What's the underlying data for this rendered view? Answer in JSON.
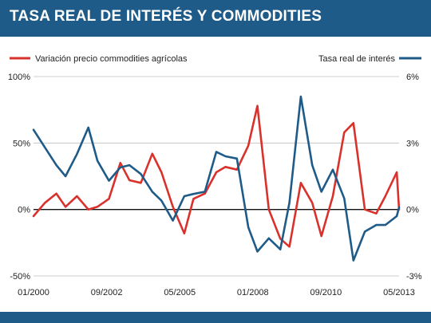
{
  "title": "TASA REAL DE INTERÉS Y COMMODITIES",
  "chart_data": {
    "type": "line",
    "title": "TASA REAL DE INTERÉS Y COMMODITIES",
    "x_tick_labels": [
      "01/2000",
      "09/2002",
      "05/2005",
      "01/2008",
      "09/2010",
      "05/2013"
    ],
    "x_range": [
      "01/2000",
      "05/2013"
    ],
    "left_axis": {
      "ticks": [
        "100%",
        "50%",
        "0%",
        "-50%"
      ],
      "ylim": [
        -50,
        100
      ],
      "unit": "%"
    },
    "right_axis": {
      "ticks": [
        "6%",
        "3%",
        "0%",
        "-3%"
      ],
      "ylim": [
        -3,
        6
      ],
      "unit": "%"
    },
    "grid": "horizontal",
    "series": [
      {
        "name": "Variación precio commodities agrícolas",
        "axis": "left",
        "color": "#d9312b",
        "legend_position": "top-left",
        "x": [
          "01/2000",
          "06/2000",
          "11/2000",
          "03/2001",
          "08/2001",
          "01/2002",
          "05/2002",
          "10/2002",
          "03/2003",
          "07/2003",
          "12/2003",
          "05/2004",
          "09/2004",
          "02/2005",
          "07/2005",
          "11/2005",
          "04/2006",
          "09/2006",
          "01/2007",
          "06/2007",
          "11/2007",
          "03/2008",
          "08/2008",
          "01/2009",
          "05/2009",
          "10/2009",
          "03/2010",
          "07/2010",
          "12/2010",
          "05/2011",
          "09/2011",
          "02/2012",
          "07/2012",
          "11/2012",
          "04/2013",
          "05/2013"
        ],
        "values": [
          -5,
          5,
          12,
          2,
          10,
          0,
          2,
          8,
          35,
          22,
          20,
          42,
          28,
          2,
          -18,
          8,
          12,
          28,
          32,
          30,
          48,
          78,
          0,
          -22,
          -28,
          20,
          5,
          -20,
          10,
          58,
          65,
          0,
          -3,
          10,
          28,
          0
        ]
      },
      {
        "name": "Tasa real de interés",
        "axis": "right",
        "color": "#1f5b88",
        "legend_position": "top-right",
        "x": [
          "01/2000",
          "06/2000",
          "11/2000",
          "03/2001",
          "08/2001",
          "01/2002",
          "05/2002",
          "10/2002",
          "03/2003",
          "07/2003",
          "12/2003",
          "05/2004",
          "09/2004",
          "02/2005",
          "07/2005",
          "11/2005",
          "04/2006",
          "09/2006",
          "01/2007",
          "06/2007",
          "11/2007",
          "03/2008",
          "08/2008",
          "01/2009",
          "05/2009",
          "10/2009",
          "03/2010",
          "07/2010",
          "12/2010",
          "05/2011",
          "09/2011",
          "02/2012",
          "07/2012",
          "11/2012",
          "04/2013",
          "05/2013"
        ],
        "values": [
          3.6,
          2.8,
          2.0,
          1.5,
          2.5,
          3.7,
          2.2,
          1.3,
          1.9,
          2.0,
          1.6,
          0.8,
          0.4,
          -0.5,
          0.6,
          0.7,
          0.8,
          2.6,
          2.4,
          2.3,
          -0.8,
          -1.9,
          -1.3,
          -1.8,
          0.3,
          5.1,
          2.0,
          0.8,
          1.8,
          0.5,
          -2.3,
          -1.0,
          -0.7,
          -0.7,
          -0.3,
          0.1
        ]
      }
    ]
  }
}
